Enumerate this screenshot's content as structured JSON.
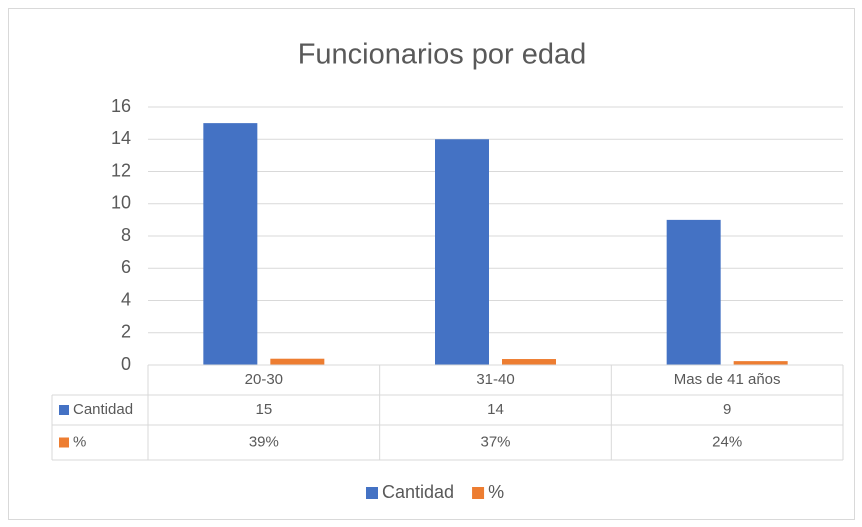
{
  "chart_data": {
    "type": "bar",
    "title": "Funcionarios por edad",
    "categories": [
      "20-30",
      "31-40",
      "Mas de 41 años"
    ],
    "series": [
      {
        "name": "Cantidad",
        "color": "#4472c4",
        "values": [
          15,
          14,
          9
        ]
      },
      {
        "name": "%",
        "color": "#ed7d31",
        "values": [
          0.39,
          0.37,
          0.24
        ],
        "value_labels": [
          "39%",
          "37%",
          "24%"
        ]
      }
    ],
    "ylim": [
      0,
      16
    ],
    "yticks": [
      0,
      2,
      4,
      6,
      8,
      10,
      12,
      14,
      16
    ],
    "grid": true,
    "data_table": true,
    "legend": "bottom"
  }
}
